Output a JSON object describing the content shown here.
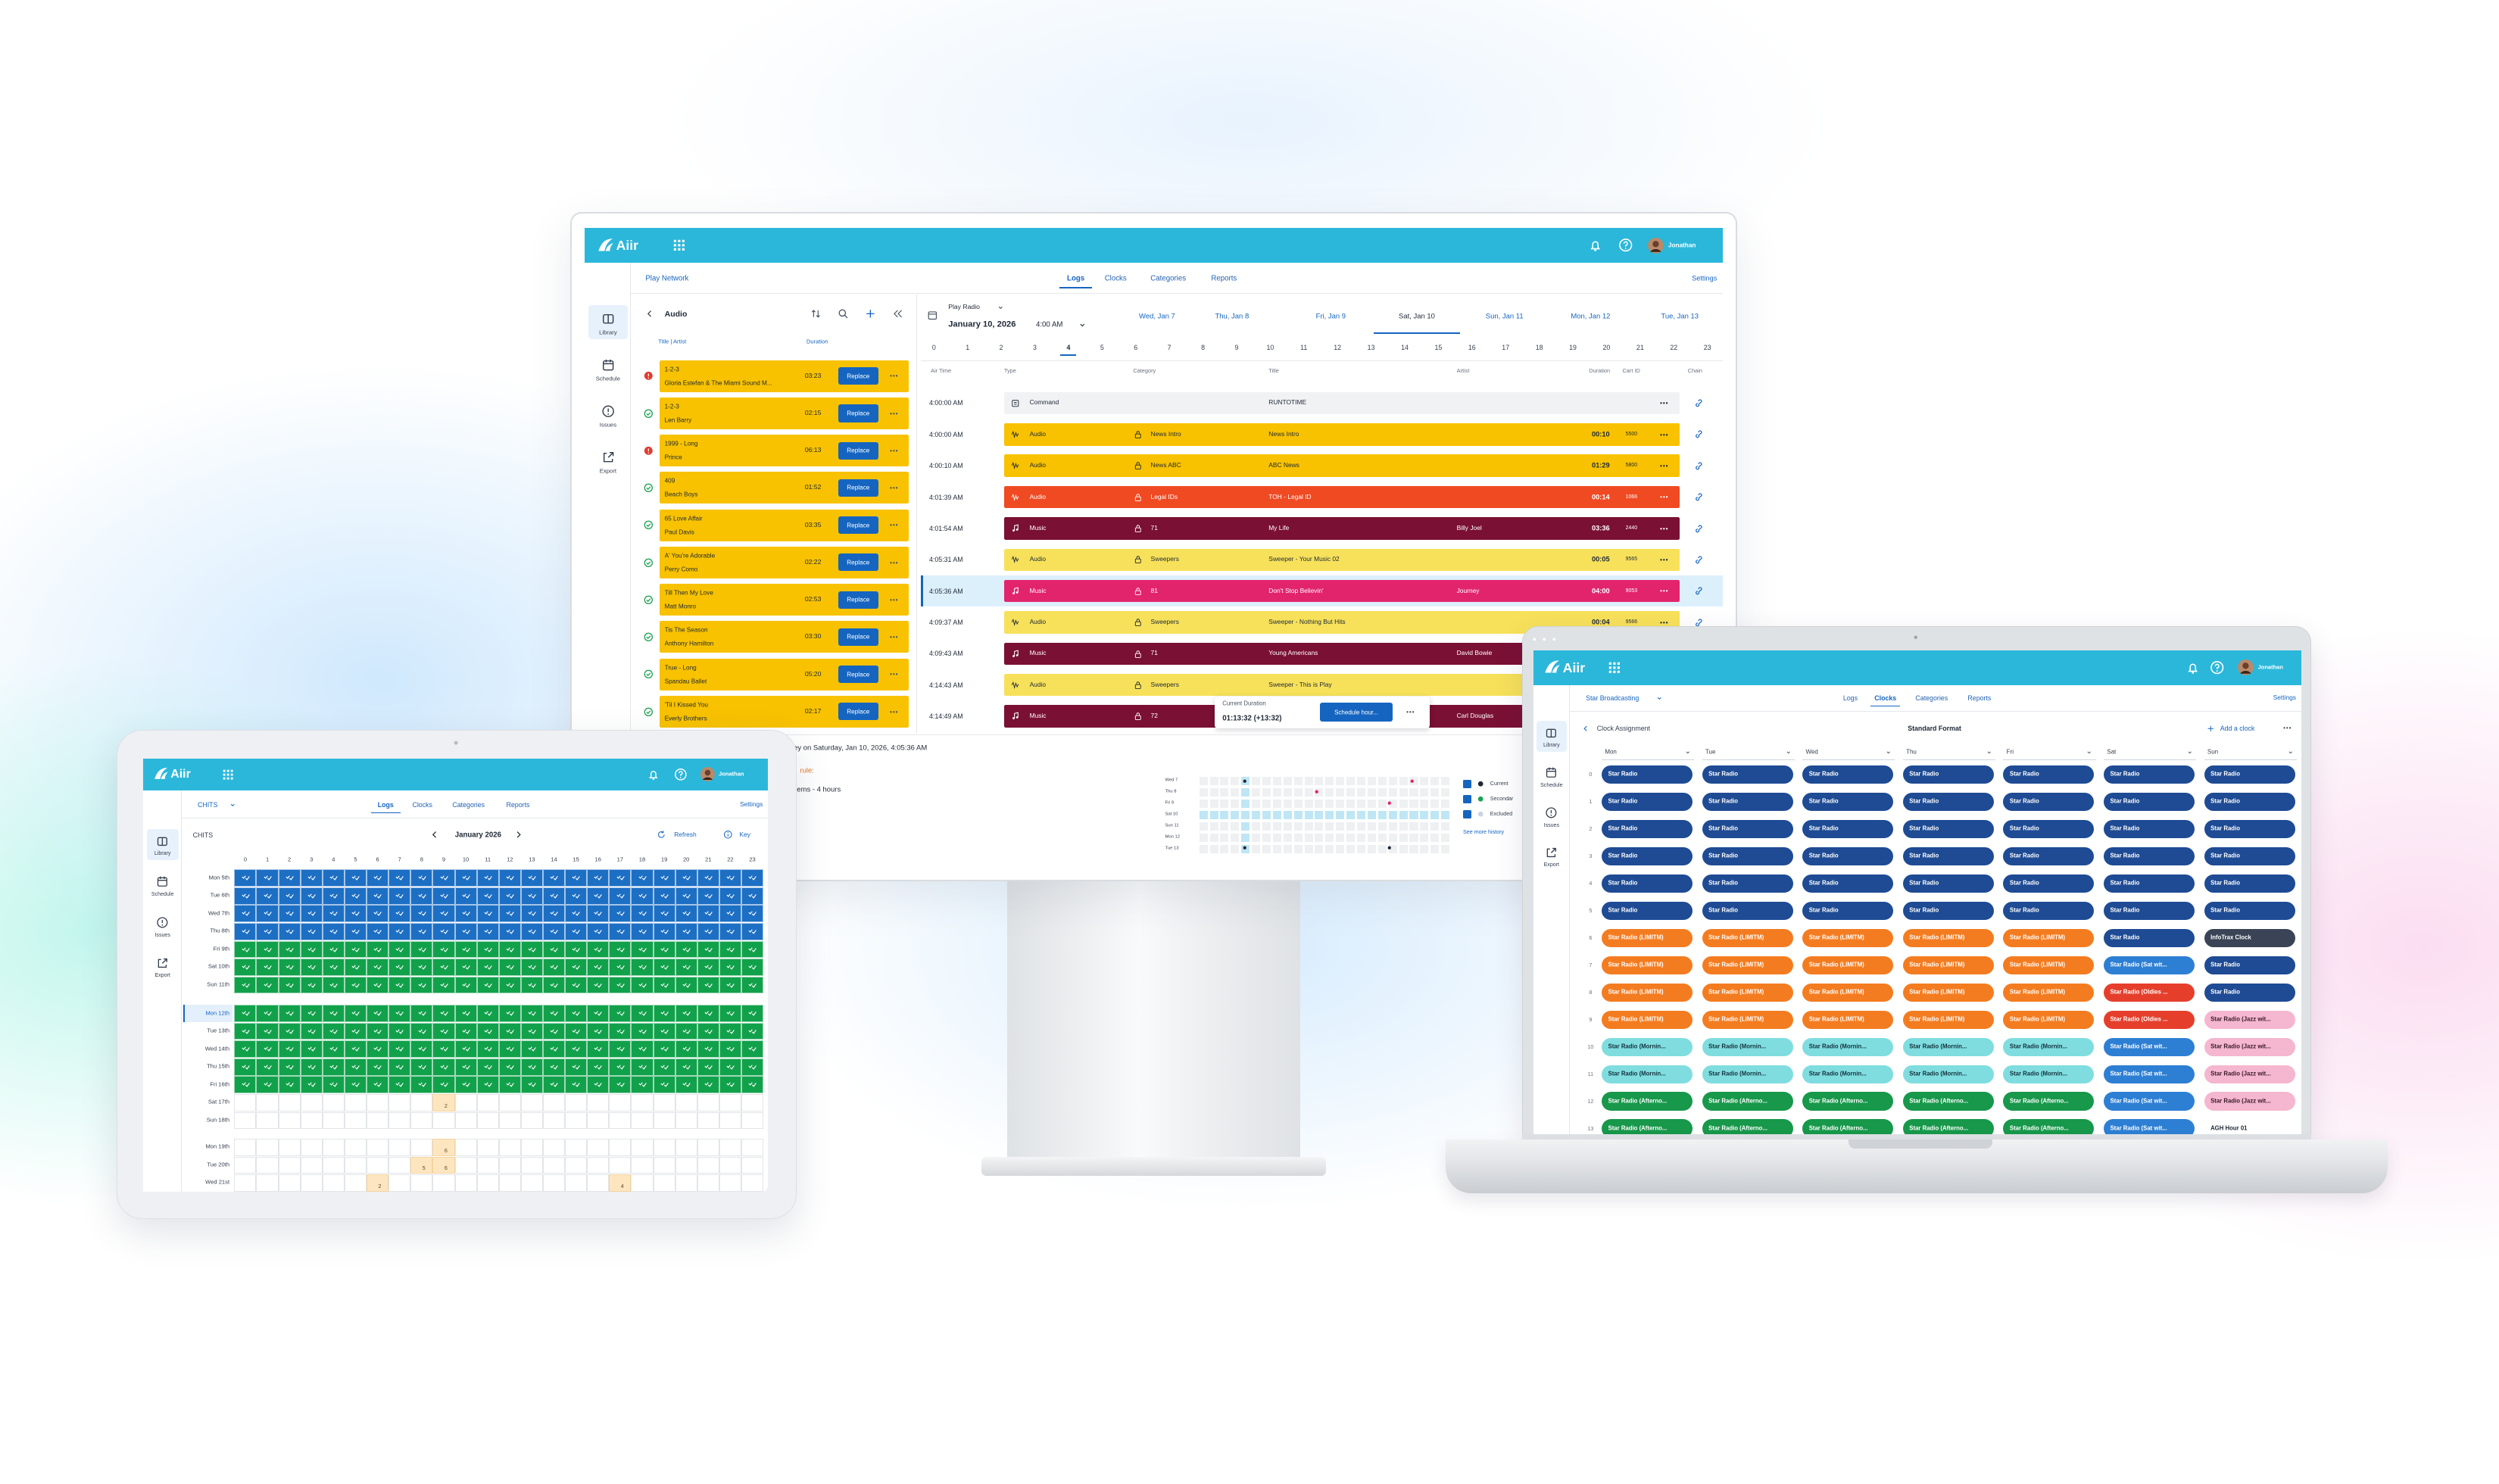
{
  "monitor": {
    "brand": "Aiir",
    "user": "Jonathan",
    "nav": [
      "Library",
      "Schedule",
      "Issues",
      "Export"
    ],
    "network": "Play Network",
    "tabs": [
      "Logs",
      "Clocks",
      "Categories",
      "Reports"
    ],
    "active_tab": 0,
    "settings": "Settings",
    "audio": {
      "title": "Audio",
      "headers": [
        "Title | Artist",
        "Duration"
      ],
      "action": "Replace",
      "items": [
        {
          "title": "1-2-3",
          "artist": "Gloria Estefan & The Miami Sound M...",
          "duration": "03:23",
          "status": "error"
        },
        {
          "title": "1-2-3",
          "artist": "Len Barry",
          "duration": "02:15",
          "status": "ok"
        },
        {
          "title": "1999 - Long",
          "artist": "Prince",
          "duration": "06:13",
          "status": "error"
        },
        {
          "title": "409",
          "artist": "Beach Boys",
          "duration": "01:52",
          "status": "ok"
        },
        {
          "title": "65 Love Affair",
          "artist": "Paul Davis",
          "duration": "03:35",
          "status": "ok"
        },
        {
          "title": "A' You're Adorable",
          "artist": "Perry Como",
          "duration": "02:22",
          "status": "ok"
        },
        {
          "title": "Till Then My Love",
          "artist": "Matt Monro",
          "duration": "02:53",
          "status": "ok"
        },
        {
          "title": "Tis The Season",
          "artist": "Anthony Hamilton",
          "duration": "03:30",
          "status": "ok"
        },
        {
          "title": "True - Long",
          "artist": "Spandau Ballet",
          "duration": "05:20",
          "status": "ok"
        },
        {
          "title": "'Til I Kissed You",
          "artist": "Everly Brothers",
          "duration": "02:17",
          "status": "ok"
        }
      ]
    },
    "log": {
      "station": "Play Radio",
      "date": "January 10, 2026",
      "time": "4:00 AM",
      "days": [
        "Wed, Jan 7",
        "Thu, Jan 8",
        "Fri, Jan 9",
        "Sat, Jan 10",
        "Sun, Jan 11",
        "Mon, Jan 12",
        "Tue, Jan 13"
      ],
      "selected_day": 3,
      "hours": [
        0,
        1,
        2,
        3,
        4,
        5,
        6,
        7,
        8,
        9,
        10,
        11,
        12,
        13,
        14,
        15,
        16,
        17,
        18,
        19,
        20,
        21,
        22,
        23
      ],
      "selected_hour": 4,
      "columns": [
        "Air Time",
        "Type",
        "Category",
        "Title",
        "Artist",
        "Duration",
        "Cart ID",
        "Chain"
      ],
      "selected_row": 6,
      "rows": [
        {
          "time": "4:00:00 AM",
          "type": "Command",
          "title": "RUNTOTIME",
          "color": "#f1f2f4",
          "text_color": "#1f2937"
        },
        {
          "time": "4:00:00 AM",
          "type": "Audio",
          "category": "News Intro",
          "title": "News Intro",
          "duration": "00:10",
          "cart": 5500,
          "color": "#f8c200",
          "text_color": "#1f2937"
        },
        {
          "time": "4:00:10 AM",
          "type": "Audio",
          "category": "News ABC",
          "title": "ABC News",
          "duration": "01:29",
          "cart": 5800,
          "color": "#f8c200",
          "text_color": "#1f2937"
        },
        {
          "time": "4:01:39 AM",
          "type": "Audio",
          "category": "Legal IDs",
          "title": "TOH - Legal ID",
          "duration": "00:14",
          "cart": 1066,
          "color": "#f04a23",
          "text_color": "#ffffff"
        },
        {
          "time": "4:01:54 AM",
          "type": "Music",
          "category": "71",
          "title": "My Life",
          "artist": "Billy Joel",
          "duration": "03:36",
          "cart": 2440,
          "color": "#7a1034",
          "text_color": "#ffffff"
        },
        {
          "time": "4:05:31 AM",
          "type": "Audio",
          "category": "Sweepers",
          "title": "Sweeper - Your Music 02",
          "duration": "00:05",
          "cart": 9565,
          "color": "#f7e15a",
          "text_color": "#1f2937"
        },
        {
          "time": "4:05:36 AM",
          "type": "Music",
          "category": "81",
          "title": "Don't Stop Believin'",
          "artist": "Journey",
          "duration": "04:00",
          "cart": 9053,
          "color": "#e2246d",
          "text_color": "#ffffff"
        },
        {
          "time": "4:09:37 AM",
          "type": "Audio",
          "category": "Sweepers",
          "title": "Sweeper - Nothing But Hits",
          "duration": "00:04",
          "cart": 9566,
          "color": "#f7e15a",
          "text_color": "#1f2937"
        },
        {
          "time": "4:09:43 AM",
          "type": "Music",
          "category": "71",
          "title": "Young Americans",
          "artist": "David Bowie",
          "color": "#7a1034",
          "text_color": "#ffffff"
        },
        {
          "time": "4:14:43 AM",
          "type": "Audio",
          "category": "Sweepers",
          "title": "Sweeper - This is Play",
          "color": "#f7e15a",
          "text_color": "#1f2937"
        },
        {
          "time": "4:14:49 AM",
          "type": "Music",
          "category": "72",
          "artist": "Carl Douglas",
          "color": "#7a1034",
          "text_color": "#ffffff"
        }
      ],
      "popup": {
        "label": "Current Duration",
        "value": "01:13:32 (+13:32)",
        "action": "Schedule hour..."
      }
    },
    "fragments": [
      "rney on Saturday, Jan 10, 2026, 4:05:36 AM",
      "rule:",
      "ems - 4 hours"
    ],
    "history_days": [
      "Wed 7",
      "Thu 8",
      "Fri 9",
      "Sat 10",
      "Sun 11",
      "Mon 12",
      "Tue 13"
    ],
    "history_legend": [
      "Current",
      "Secondar",
      "Excluded"
    ],
    "history_link": "See more history"
  },
  "tablet": {
    "brand": "Aiir",
    "user": "Jonathan",
    "nav": [
      "Library",
      "Schedule",
      "Issues",
      "Export"
    ],
    "network": "CHITS",
    "tabs": [
      "Logs",
      "Clocks",
      "Categories",
      "Reports"
    ],
    "active_tab": 0,
    "settings": "Settings",
    "heading": "CHITS",
    "month": "January 2026",
    "refresh": "Refresh",
    "key": "Key",
    "hours": [
      0,
      1,
      2,
      3,
      4,
      5,
      6,
      7,
      8,
      9,
      10,
      11,
      12,
      13,
      14,
      15,
      16,
      17,
      18,
      19,
      20,
      21,
      22,
      23
    ],
    "weeks": [
      [
        {
          "day": "Mon 5th",
          "fill": "#1d6fc4"
        },
        {
          "day": "Tue 6th",
          "fill": "#1d6fc4"
        },
        {
          "day": "Wed 7th",
          "fill": "#1d6fc4"
        },
        {
          "day": "Thu 8th",
          "fill": "#1d6fc4"
        },
        {
          "day": "Fri 9th",
          "fill": "#12a14b"
        },
        {
          "day": "Sat 10th",
          "fill": "#12a14b"
        },
        {
          "day": "Sun 11th",
          "fill": "#12a14b"
        }
      ],
      [
        {
          "day": "Mon 12th",
          "fill": "#12a14b",
          "today": true
        },
        {
          "day": "Tue 13th",
          "fill": "#12a14b"
        },
        {
          "day": "Wed 14th",
          "fill": "#12a14b"
        },
        {
          "day": "Thu 15th",
          "fill": "#12a14b"
        },
        {
          "day": "Fri 16th",
          "fill": "#12a14b"
        },
        {
          "day": "Sat 17th",
          "counts": [
            {
              "hour": 9,
              "count": 2
            }
          ]
        },
        {
          "day": "Sun 18th"
        }
      ],
      [
        {
          "day": "Mon 19th",
          "counts": [
            {
              "hour": 9,
              "count": 6
            }
          ]
        },
        {
          "day": "Tue 20th",
          "counts": [
            {
              "hour": 8,
              "count": 5
            },
            {
              "hour": 9,
              "count": 6
            }
          ]
        },
        {
          "day": "Wed 21st",
          "counts": [
            {
              "hour": 6,
              "count": 2
            },
            {
              "hour": 17,
              "count": 4
            }
          ]
        }
      ]
    ]
  },
  "laptop": {
    "brand": "Aiir",
    "user": "Jonathan",
    "nav": [
      "Library",
      "Schedule",
      "Issues",
      "Export"
    ],
    "network": "Star Broadcasting",
    "tabs": [
      "Logs",
      "Clocks",
      "Categories",
      "Reports"
    ],
    "active_tab": 1,
    "settings": "Settings",
    "back": "Clock Assignment",
    "format": "Standard Format",
    "add": "Add a clock",
    "days": [
      "Mon",
      "Tue",
      "Wed",
      "Thu",
      "Fri",
      "Sat",
      "Sun"
    ],
    "hours": [
      0,
      1,
      2,
      3,
      4,
      5,
      6,
      7,
      8,
      9,
      10,
      11,
      12,
      13
    ],
    "clock_styles": {
      "Star Radio": {
        "color": "#1e4b94",
        "text": "#ffffff"
      },
      "Star Radio (LIMITM)": {
        "color": "#f47c20",
        "text": "#ffffff"
      },
      "Star Radio (Mornin...": {
        "color": "#7fdde0",
        "text": "#12303a"
      },
      "Star Radio (Afterno...": {
        "color": "#17984a",
        "text": "#ffffff"
      },
      "Star Radio (Sat wit...": {
        "color": "#2d7fd3",
        "text": "#ffffff"
      },
      "Star Radio (Oldies ...": {
        "color": "#e53f2c",
        "text": "#ffffff"
      },
      "Star Radio (Jazz wit...": {
        "color": "#f5b6cf",
        "text": "#3a1a28"
      },
      "InfoTrax Clock": {
        "color": "#3a4456",
        "text": "#ffffff"
      },
      "AGH Hour 01": {
        "color": "#ffffff",
        "text": "#1f2937"
      }
    },
    "grid": [
      [
        "Star Radio",
        "Star Radio",
        "Star Radio",
        "Star Radio",
        "Star Radio",
        "Star Radio",
        "Star Radio"
      ],
      [
        "Star Radio",
        "Star Radio",
        "Star Radio",
        "Star Radio",
        "Star Radio",
        "Star Radio",
        "Star Radio"
      ],
      [
        "Star Radio",
        "Star Radio",
        "Star Radio",
        "Star Radio",
        "Star Radio",
        "Star Radio",
        "Star Radio"
      ],
      [
        "Star Radio",
        "Star Radio",
        "Star Radio",
        "Star Radio",
        "Star Radio",
        "Star Radio",
        "Star Radio"
      ],
      [
        "Star Radio",
        "Star Radio",
        "Star Radio",
        "Star Radio",
        "Star Radio",
        "Star Radio",
        "Star Radio"
      ],
      [
        "Star Radio",
        "Star Radio",
        "Star Radio",
        "Star Radio",
        "Star Radio",
        "Star Radio",
        "Star Radio"
      ],
      [
        "Star Radio (LIMITM)",
        "Star Radio (LIMITM)",
        "Star Radio (LIMITM)",
        "Star Radio (LIMITM)",
        "Star Radio (LIMITM)",
        "Star Radio",
        "InfoTrax Clock"
      ],
      [
        "Star Radio (LIMITM)",
        "Star Radio (LIMITM)",
        "Star Radio (LIMITM)",
        "Star Radio (LIMITM)",
        "Star Radio (LIMITM)",
        "Star Radio (Sat wit...",
        "Star Radio"
      ],
      [
        "Star Radio (LIMITM)",
        "Star Radio (LIMITM)",
        "Star Radio (LIMITM)",
        "Star Radio (LIMITM)",
        "Star Radio (LIMITM)",
        "Star Radio (Oldies ...",
        "Star Radio"
      ],
      [
        "Star Radio (LIMITM)",
        "Star Radio (LIMITM)",
        "Star Radio (LIMITM)",
        "Star Radio (LIMITM)",
        "Star Radio (LIMITM)",
        "Star Radio (Oldies ...",
        "Star Radio (Jazz wit..."
      ],
      [
        "Star Radio (Mornin...",
        "Star Radio (Mornin...",
        "Star Radio (Mornin...",
        "Star Radio (Mornin...",
        "Star Radio (Mornin...",
        "Star Radio (Sat wit...",
        "Star Radio (Jazz wit..."
      ],
      [
        "Star Radio (Mornin...",
        "Star Radio (Mornin...",
        "Star Radio (Mornin...",
        "Star Radio (Mornin...",
        "Star Radio (Mornin...",
        "Star Radio (Sat wit...",
        "Star Radio (Jazz wit..."
      ],
      [
        "Star Radio (Afterno...",
        "Star Radio (Afterno...",
        "Star Radio (Afterno...",
        "Star Radio (Afterno...",
        "Star Radio (Afterno...",
        "Star Radio (Sat wit...",
        "Star Radio (Jazz wit..."
      ],
      [
        "Star Radio (Afterno...",
        "Star Radio (Afterno...",
        "Star Radio (Afterno...",
        "Star Radio (Afterno...",
        "Star Radio (Afterno...",
        "Star Radio (Sat wit...",
        "AGH Hour 01"
      ]
    ]
  }
}
